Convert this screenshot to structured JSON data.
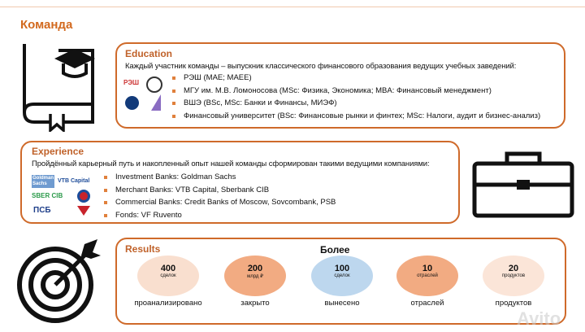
{
  "title": "Команда",
  "education": {
    "heading": "Education",
    "intro": "Каждый участник команды – выпускник классического финансового образования ведущих учебных заведений:",
    "items": [
      "РЭШ (MAE; MAEE)",
      "МГУ им. М.В. Ломоносова (MSc: Физика, Экономика; MBA: Финансовый менеджмент)",
      "ВШЭ (BSc, MSc: Банки и Финансы, МИЭФ)",
      "Финансовый университет (BSc: Финансовые рынки и финтех; MSc: Налоги, аудит и бизнес-анализ)"
    ],
    "logos": [
      "РЭШ"
    ]
  },
  "experience": {
    "heading": "Experience",
    "intro": "Пройдённый карьерный путь и накопленный опыт нашей команды сформирован такими ведущими компаниями:",
    "items": [
      "Investment Banks: Goldman Sachs",
      "Merchant Banks: VTB Capital, Sberbank CIB",
      "Commercial Banks: Credit Banks of Moscow, Sovcombank, PSB",
      "Fonds: VF Ruvento"
    ],
    "logos": [
      "Goldman Sachs",
      "VTB Capital",
      "SBER CIB",
      "ПСБ"
    ]
  },
  "results": {
    "heading": "Results",
    "subtitle": "Более",
    "stats": [
      {
        "value": "400",
        "unit": "сделок",
        "caption": "проанализировано",
        "color": "#f9dfcf"
      },
      {
        "value": "200",
        "unit": "млрд ₽",
        "caption": "закрыто",
        "color": "#f2ab82"
      },
      {
        "value": "100",
        "unit": "сделок",
        "caption": "вынесено",
        "color": "#bdd7ee"
      },
      {
        "value": "10",
        "unit": "отраслей",
        "caption": "отраслей",
        "color": "#f2ab82"
      },
      {
        "value": "20",
        "unit": "продуктов",
        "caption": "продуктов",
        "color": "#fbe5d8"
      }
    ]
  },
  "watermark": "Avito"
}
